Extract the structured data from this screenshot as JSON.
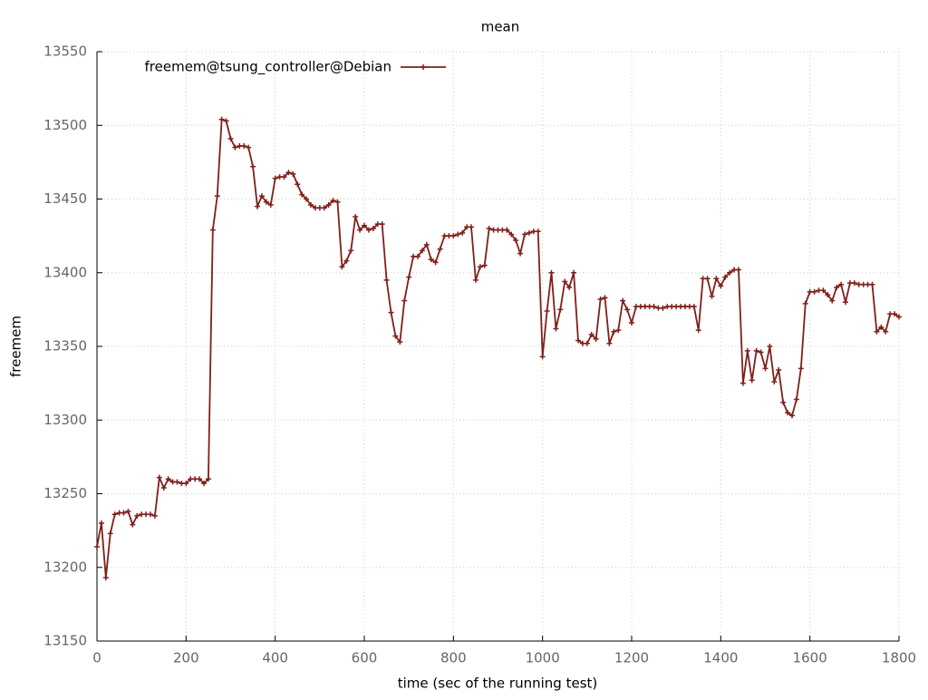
{
  "chart_data": {
    "type": "line",
    "title": "mean",
    "x_label": "time (sec of the running test)",
    "y_label": "freemem",
    "x": [
      0,
      10,
      20,
      30,
      40,
      50,
      60,
      70,
      80,
      90,
      100,
      110,
      120,
      130,
      140,
      150,
      160,
      170,
      180,
      190,
      200,
      210,
      220,
      230,
      240,
      250,
      260,
      270,
      280,
      290,
      300,
      310,
      320,
      330,
      340,
      350,
      360,
      370,
      380,
      390,
      400,
      410,
      420,
      430,
      440,
      450,
      460,
      470,
      480,
      490,
      500,
      510,
      520,
      530,
      540,
      550,
      560,
      570,
      580,
      590,
      600,
      610,
      620,
      630,
      640,
      650,
      660,
      670,
      680,
      690,
      700,
      710,
      720,
      730,
      740,
      750,
      760,
      770,
      780,
      790,
      800,
      810,
      820,
      830,
      840,
      850,
      860,
      870,
      880,
      890,
      900,
      910,
      920,
      930,
      940,
      950,
      960,
      970,
      980,
      990,
      1000,
      1010,
      1020,
      1030,
      1040,
      1050,
      1060,
      1070,
      1080,
      1090,
      1100,
      1110,
      1120,
      1130,
      1140,
      1150,
      1160,
      1170,
      1180,
      1190,
      1200,
      1210,
      1220,
      1230,
      1240,
      1250,
      1260,
      1270,
      1280,
      1290,
      1300,
      1310,
      1320,
      1330,
      1340,
      1350,
      1360,
      1370,
      1380,
      1390,
      1400,
      1410,
      1420,
      1430,
      1440,
      1450,
      1460,
      1470,
      1480,
      1490,
      1500,
      1510,
      1520,
      1530,
      1540,
      1550,
      1560,
      1570,
      1580,
      1590,
      1600,
      1610,
      1620,
      1630,
      1640,
      1650,
      1660,
      1670,
      1680,
      1690,
      1700,
      1710,
      1720,
      1730,
      1740,
      1750,
      1760,
      1770,
      1780,
      1790,
      1800
    ],
    "series": [
      {
        "name": "freemem@tsung_controller@Debian",
        "color": "#7f1f1a",
        "values": [
          13214,
          13230,
          13193,
          13223,
          13236,
          13237,
          13237,
          13238,
          13229,
          13235,
          13236,
          13236,
          13236,
          13235,
          13261,
          13254,
          13260,
          13258,
          13258,
          13257,
          13257,
          13260,
          13260,
          13260,
          13257,
          13260,
          13429,
          13452,
          13504,
          13503,
          13491,
          13485,
          13486,
          13486,
          13485,
          13472,
          13445,
          13452,
          13448,
          13446,
          13464,
          13465,
          13465,
          13468,
          13467,
          13460,
          13453,
          13450,
          13446,
          13444,
          13444,
          13444,
          13446,
          13449,
          13448,
          13404,
          13408,
          13415,
          13438,
          13429,
          13432,
          13429,
          13430,
          13433,
          13433,
          13395,
          13373,
          13357,
          13353,
          13381,
          13397,
          13411,
          13411,
          13415,
          13419,
          13409,
          13407,
          13416,
          13425,
          13425,
          13425,
          13426,
          13427,
          13431,
          13431,
          13395,
          13404,
          13405,
          13430,
          13429,
          13429,
          13429,
          13429,
          13426,
          13422,
          13413,
          13426,
          13427,
          13428,
          13428,
          13343,
          13374,
          13400,
          13362,
          13375,
          13394,
          13390,
          13400,
          13354,
          13352,
          13352,
          13358,
          13355,
          13382,
          13383,
          13352,
          13360,
          13361,
          13381,
          13375,
          13366,
          13377,
          13377,
          13377,
          13377,
          13377,
          13376,
          13376,
          13377,
          13377,
          13377,
          13377,
          13377,
          13377,
          13377,
          13361,
          13396,
          13396,
          13384,
          13396,
          13391,
          13397,
          13400,
          13402,
          13402,
          13325,
          13347,
          13327,
          13347,
          13346,
          13335,
          13350,
          13326,
          13334,
          13312,
          13305,
          13303,
          13314,
          13335,
          13379,
          13387,
          13387,
          13388,
          13388,
          13385,
          13381,
          13390,
          13392,
          13380,
          13393,
          13393,
          13392,
          13392,
          13392,
          13392,
          13360,
          13363,
          13360,
          13372,
          13372,
          13370
        ]
      }
    ],
    "xlim": [
      0,
      1800
    ],
    "xticks": [
      0,
      200,
      400,
      600,
      800,
      1000,
      1200,
      1400,
      1600,
      1800
    ],
    "ylim": [
      13150,
      13550
    ],
    "yticks": [
      13150,
      13200,
      13250,
      13300,
      13350,
      13400,
      13450,
      13500,
      13550
    ],
    "grid": true,
    "legend": "top-left"
  }
}
